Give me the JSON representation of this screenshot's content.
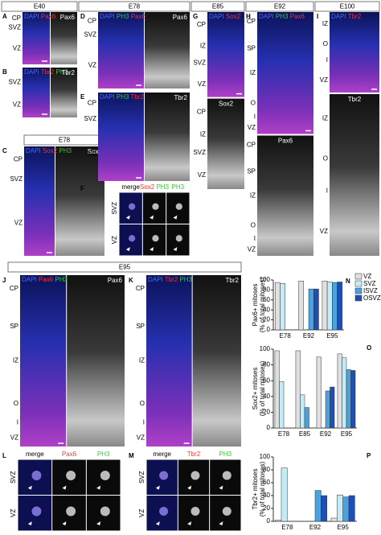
{
  "figure": {
    "headers": [
      "E40",
      "E78",
      "E85",
      "E92",
      "E100",
      "E78",
      "E95"
    ],
    "panels": [
      {
        "letter": "A",
        "channels": [
          {
            "text": "DAPI",
            "color": "#4b6bff"
          },
          {
            "text": "Pax6",
            "color": "#ff3030"
          }
        ],
        "gray": "Pax6",
        "zones": [
          "CP",
          "SVZ",
          "VZ"
        ]
      },
      {
        "letter": "B",
        "channels": [
          {
            "text": "DAPI",
            "color": "#4b6bff"
          },
          {
            "text": "Tbr2",
            "color": "#ff3030"
          },
          {
            "text": "PH3",
            "color": "#33cc33"
          }
        ],
        "gray": "Tbr2",
        "zones": [
          "SVZ",
          "VZ"
        ]
      },
      {
        "letter": "C",
        "channels": [
          {
            "text": "DAPI",
            "color": "#4b6bff"
          },
          {
            "text": "Sox2",
            "color": "#ff3030"
          },
          {
            "text": "PH3",
            "color": "#33cc33"
          }
        ],
        "gray": "Sox2",
        "zones": [
          "CP",
          "SVZ",
          "VZ"
        ]
      },
      {
        "letter": "D",
        "channels": [
          {
            "text": "DAPI",
            "color": "#4b6bff"
          },
          {
            "text": "PH3",
            "color": "#33cc33"
          },
          {
            "text": "Pax6",
            "color": "#ff3030"
          }
        ],
        "gray": "Pax6",
        "zones": [
          "CP",
          "SVZ",
          "VZ"
        ]
      },
      {
        "letter": "E",
        "channels": [
          {
            "text": "DAPI",
            "color": "#4b6bff"
          },
          {
            "text": "PH3",
            "color": "#33cc33"
          },
          {
            "text": "Tbr2",
            "color": "#ff3030"
          }
        ],
        "gray": "Tbr2",
        "zones": [
          "CP",
          "SVZ",
          "VZ"
        ]
      },
      {
        "letter": "F",
        "columns": [
          [
            {
              "text": "merge",
              "color": "#000000"
            }
          ],
          [
            {
              "text": "Sox2",
              "color": "#ff3030"
            },
            {
              "text": "PH3",
              "color": "#33cc33"
            }
          ],
          [
            {
              "text": "PH3",
              "color": "#33cc33"
            }
          ]
        ],
        "zones": [
          "SVZ",
          "VZ"
        ]
      },
      {
        "letter": "G",
        "channels": [
          {
            "text": "DAPI",
            "color": "#4b6bff"
          },
          {
            "text": "Sox2",
            "color": "#ff3030"
          }
        ],
        "gray": "Sox2",
        "zones": [
          "CP",
          "IZ",
          "SVZ",
          "VZ"
        ],
        "gray_zones": [
          "CP",
          "IZ",
          "SVZ",
          "VZ"
        ]
      },
      {
        "letter": "H",
        "channels": [
          {
            "text": "DAPI",
            "color": "#4b6bff"
          },
          {
            "text": "PH3",
            "color": "#33cc33"
          },
          {
            "text": "Pax6",
            "color": "#ff3030"
          }
        ],
        "gray": "Pax6",
        "zones": [
          "CP",
          "SP",
          "IZ",
          "O",
          "I",
          "VZ"
        ],
        "gray_zones": [
          "CP",
          "SP",
          "IZ",
          "O",
          "I",
          "VZ"
        ]
      },
      {
        "letter": "I",
        "channels": [
          {
            "text": "DAPI",
            "color": "#4b6bff"
          },
          {
            "text": "Tbr2",
            "color": "#ff3030"
          }
        ],
        "gray": "Tbr2",
        "zones": [
          "IZ",
          "O",
          "I",
          "VZ"
        ],
        "gray_zones": [
          "IZ",
          "O",
          "I",
          "VZ"
        ]
      },
      {
        "letter": "J",
        "channels": [
          {
            "text": "DAPI",
            "color": "#4b6bff"
          },
          {
            "text": "Pax6",
            "color": "#ff3030"
          },
          {
            "text": "PH3",
            "color": "#33cc33"
          }
        ],
        "gray": "Pax6",
        "zones": [
          "CP",
          "SP",
          "IZ",
          "O",
          "I",
          "VZ"
        ]
      },
      {
        "letter": "K",
        "channels": [
          {
            "text": "DAPI",
            "color": "#4b6bff"
          },
          {
            "text": "Tbr2",
            "color": "#ff3030"
          },
          {
            "text": "PH3",
            "color": "#33cc33"
          }
        ],
        "gray": "Tbr2",
        "zones": [
          "CP",
          "SP",
          "IZ",
          "O",
          "I",
          "VZ"
        ]
      },
      {
        "letter": "L",
        "columns": [
          [
            {
              "text": "merge",
              "color": "#000000"
            }
          ],
          [
            {
              "text": "Pax6",
              "color": "#ff3030"
            }
          ],
          [
            {
              "text": "PH3",
              "color": "#33cc33"
            }
          ]
        ],
        "zones": [
          "SVZ",
          "VZ"
        ]
      },
      {
        "letter": "M",
        "columns": [
          [
            {
              "text": "merge",
              "color": "#000000"
            }
          ],
          [
            {
              "text": "Tbr2",
              "color": "#ff3030"
            }
          ],
          [
            {
              "text": "PH3",
              "color": "#33cc33"
            }
          ]
        ],
        "zones": [
          "SVZ",
          "VZ"
        ]
      }
    ]
  },
  "chart_data": [
    {
      "type": "bar",
      "letter": "N",
      "ylabel": [
        "Pax6+ mitoses",
        "(% of total mitoses)"
      ],
      "categories": [
        "E78",
        "E92",
        "E95"
      ],
      "series": [
        {
          "name": "VZ",
          "color": "#e0e0e0",
          "values": [
            95,
            98,
            98
          ]
        },
        {
          "name": "SVZ",
          "color": "#c4ecf7",
          "values": [
            93,
            null,
            96
          ]
        },
        {
          "name": "ISVZ",
          "color": "#4aa3df",
          "values": [
            null,
            82,
            95
          ]
        },
        {
          "name": "OSVZ",
          "color": "#1f4fb5",
          "values": [
            null,
            82,
            96
          ]
        }
      ],
      "ylim": [
        0,
        100
      ],
      "yticks": [
        0,
        20,
        40,
        60,
        80,
        100
      ],
      "legend": "top-right"
    },
    {
      "type": "bar",
      "letter": "O",
      "ylabel": [
        "Sox2+ mitoses",
        "(% of total mitoses)"
      ],
      "categories": [
        "E78",
        "E85",
        "E92",
        "E95"
      ],
      "series": [
        {
          "color": "#e0e0e0",
          "values": [
            98,
            98,
            90,
            94
          ]
        },
        {
          "color": "#c4ecf7",
          "values": [
            59,
            42,
            null,
            89
          ]
        },
        {
          "color": "#4aa3df",
          "values": [
            null,
            26,
            47,
            74
          ]
        },
        {
          "color": "#1f4fb5",
          "values": [
            null,
            null,
            52,
            73
          ]
        }
      ],
      "ylim": [
        0,
        100
      ],
      "yticks": [
        0,
        20,
        40,
        60,
        80,
        100
      ]
    },
    {
      "type": "bar",
      "letter": "P",
      "ylabel": [
        "Tbr2+ mitoses",
        "(% of total mitoses)"
      ],
      "categories": [
        "E78",
        "E92",
        "E95"
      ],
      "series": [
        {
          "color": "#e0e0e0",
          "values": [
            2,
            null,
            5
          ]
        },
        {
          "color": "#c4ecf7",
          "values": [
            83,
            null,
            41
          ]
        },
        {
          "color": "#4aa3df",
          "values": [
            null,
            48,
            38
          ]
        },
        {
          "color": "#1f4fb5",
          "values": [
            null,
            40,
            40
          ]
        }
      ],
      "ylim": [
        0,
        100
      ],
      "yticks": [
        0,
        20,
        40,
        60,
        80,
        100
      ]
    }
  ]
}
